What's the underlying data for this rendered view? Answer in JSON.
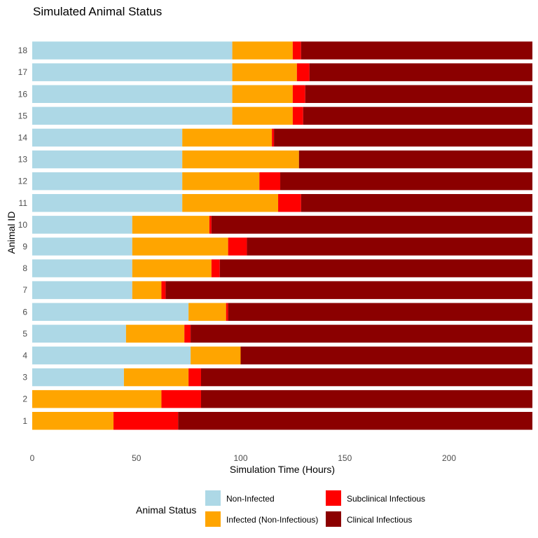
{
  "chart_data": {
    "type": "bar",
    "orientation": "horizontal",
    "stacked": true,
    "title": "Simulated Animal Status",
    "xlabel": "Simulation Time (Hours)",
    "ylabel": "Animal ID",
    "xlim": [
      0,
      240
    ],
    "xticks": [
      0,
      50,
      100,
      150,
      200
    ],
    "grid": false,
    "legend_position": "bottom",
    "legend_title": "Animal Status",
    "categories": [
      "1",
      "2",
      "3",
      "4",
      "5",
      "6",
      "7",
      "8",
      "9",
      "10",
      "11",
      "12",
      "13",
      "14",
      "15",
      "16",
      "17",
      "18"
    ],
    "series": [
      {
        "name": "Non-Infected",
        "color": "#add8e6",
        "values": [
          0,
          0,
          44,
          76,
          45,
          75,
          48,
          48,
          48,
          48,
          72,
          72,
          72,
          72,
          96,
          96,
          96,
          96
        ]
      },
      {
        "name": "Infected (Non-Infectious)",
        "color": "#ffa500",
        "values": [
          39,
          62,
          31,
          24,
          28,
          18,
          14,
          38,
          46,
          37,
          46,
          37,
          56,
          43,
          29,
          29,
          31,
          29
        ]
      },
      {
        "name": "Subclinical Infectious",
        "color": "#ff0000",
        "values": [
          31,
          19,
          6,
          0,
          3,
          1,
          2,
          4,
          9,
          1,
          11,
          10,
          0,
          1,
          5,
          6,
          6,
          4
        ]
      },
      {
        "name": "Clinical Infectious",
        "color": "#8b0000",
        "values": [
          170,
          159,
          159,
          140,
          164,
          146,
          176,
          150,
          137,
          154,
          111,
          121,
          112,
          124,
          110,
          109,
          107,
          111
        ]
      }
    ]
  }
}
